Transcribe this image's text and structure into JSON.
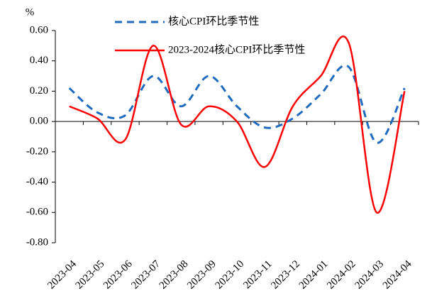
{
  "chart_data": {
    "type": "line",
    "unit": "%",
    "categories": [
      "2023-04",
      "2023-05",
      "2023-06",
      "2023-07",
      "2023-08",
      "2023-09",
      "2023-10",
      "2023-11",
      "2023-12",
      "2024-01",
      "2024-02",
      "2024-03",
      "2024-04"
    ],
    "series": [
      {
        "name": "核心CPI环比季节性",
        "color": "#1f6bbf",
        "dash": true,
        "values": [
          0.22,
          0.06,
          0.04,
          0.3,
          0.1,
          0.3,
          0.1,
          -0.04,
          0.02,
          0.18,
          0.36,
          -0.14,
          0.22
        ]
      },
      {
        "name": "2023-2024核心CPI环比季节性",
        "color": "#ff0000",
        "dash": false,
        "values": [
          0.1,
          0.02,
          -0.12,
          0.5,
          -0.02,
          0.1,
          0.0,
          -0.3,
          0.1,
          0.3,
          0.52,
          -0.6,
          0.2
        ]
      }
    ],
    "ylim": [
      -0.8,
      0.6
    ],
    "yticks": [
      {
        "value": -0.8,
        "label": "-0.80"
      },
      {
        "value": -0.6,
        "label": "-0.60"
      },
      {
        "value": -0.4,
        "label": "-0.40"
      },
      {
        "value": -0.2,
        "label": "-0.20"
      },
      {
        "value": 0,
        "label": "0.00"
      },
      {
        "value": 0.2,
        "label": "0.20"
      },
      {
        "value": 0.4,
        "label": "0.40"
      },
      {
        "value": 0.6,
        "label": "0.60"
      }
    ],
    "smooth": true,
    "legend": "top"
  }
}
